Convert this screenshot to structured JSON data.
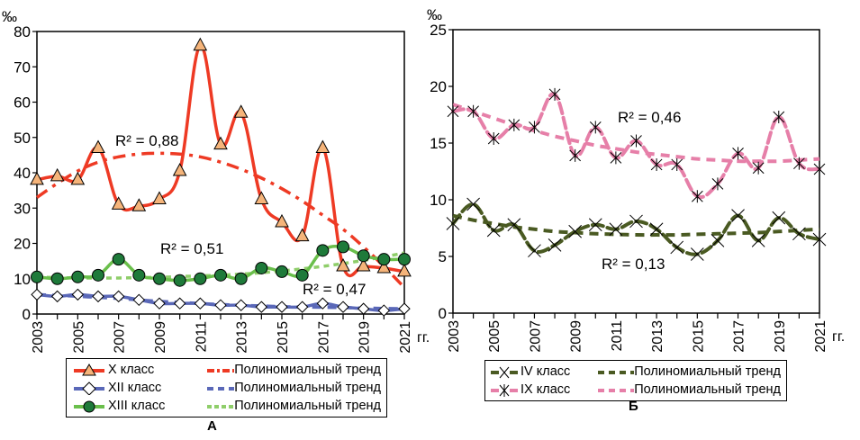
{
  "chart_data": [
    {
      "id": "A",
      "type": "line",
      "panel_label": "А",
      "unit_label": "‰",
      "x_suffix": "гг.",
      "x": [
        2003,
        2004,
        2005,
        2006,
        2007,
        2008,
        2009,
        2010,
        2011,
        2012,
        2013,
        2014,
        2015,
        2016,
        2017,
        2018,
        2019,
        2020,
        2021
      ],
      "xticks_labeled": [
        2003,
        2005,
        2007,
        2009,
        2011,
        2013,
        2015,
        2017,
        2019,
        2021
      ],
      "ylim": [
        0,
        80
      ],
      "yticks": [
        0,
        10,
        20,
        30,
        40,
        50,
        60,
        70,
        80
      ],
      "grid": false,
      "series": [
        {
          "name": "X класс",
          "color": "#ee3a24",
          "marker": "triangle",
          "marker_fill": "#f5b47a",
          "values": [
            38,
            39,
            38,
            47,
            31,
            30.5,
            32.5,
            40.5,
            76,
            48,
            57,
            32.5,
            26,
            22,
            47,
            13.5,
            13.5,
            13,
            12
          ]
        },
        {
          "name": "XII класс",
          "color": "#5a68b8",
          "marker": "diamond",
          "marker_fill": "#ffffff",
          "values": [
            5.5,
            5,
            5.5,
            5,
            5,
            4,
            3,
            3,
            3,
            2.5,
            2.5,
            2,
            2,
            2,
            3,
            2,
            1.5,
            1,
            1.5
          ]
        },
        {
          "name": "XIII класс",
          "color": "#6abf4b",
          "marker": "circle",
          "marker_fill": "#1e7a3a",
          "values": [
            10.5,
            10,
            10.5,
            11,
            15.5,
            11,
            10,
            9.5,
            10,
            11,
            10,
            13,
            12,
            11,
            18,
            19,
            16.5,
            15.5,
            15.5
          ]
        }
      ],
      "trends": [
        {
          "name": "Полиномиальный тренд",
          "for": "X класс",
          "color": "#ee3a24",
          "style": "dash-dot",
          "r2_label": "R² = 0,88",
          "values": [
            33,
            37,
            40.5,
            43,
            44.5,
            45.3,
            45.5,
            45.3,
            44.5,
            43,
            41,
            38.5,
            35.5,
            32,
            28,
            24,
            19,
            13.5,
            7.5
          ]
        },
        {
          "name": "Полиномиальный тренд",
          "for": "XII класс",
          "color": "#5a68b8",
          "style": "dash",
          "r2_label": "R² = 0,47",
          "values": [
            5.5,
            5.3,
            5,
            4.7,
            4.4,
            4,
            3.6,
            3.3,
            3,
            2.7,
            2.5,
            2.3,
            2.1,
            2,
            1.9,
            1.8,
            1.7,
            1.6,
            1.5
          ]
        },
        {
          "name": "Полиномиальный тренд",
          "for": "XIII класс",
          "color": "#8fce6a",
          "style": "dotted",
          "r2_label": "R² = 0,51",
          "values": [
            10.5,
            10.3,
            10.2,
            10.2,
            10.2,
            10.3,
            10.4,
            10.6,
            10.8,
            11,
            11.3,
            11.7,
            12.2,
            12.8,
            13.5,
            14.3,
            15.2,
            16.2,
            17.3
          ]
        }
      ]
    },
    {
      "id": "B",
      "type": "line",
      "panel_label": "Б",
      "unit_label": "‰",
      "x_suffix": "гг.",
      "x": [
        2003,
        2004,
        2005,
        2006,
        2007,
        2008,
        2009,
        2010,
        2011,
        2012,
        2013,
        2014,
        2015,
        2016,
        2017,
        2018,
        2019,
        2020,
        2021
      ],
      "xticks_labeled": [
        2003,
        2005,
        2007,
        2009,
        2011,
        2013,
        2015,
        2017,
        2019,
        2021
      ],
      "ylim": [
        0,
        25
      ],
      "yticks": [
        0,
        5,
        10,
        15,
        20,
        25
      ],
      "grid": false,
      "series": [
        {
          "name": "IV класс",
          "color": "#4a5a22",
          "marker": "x",
          "values": [
            7.9,
            9.6,
            7.3,
            7.8,
            5.5,
            6.0,
            7.2,
            7.8,
            7.4,
            8.1,
            7.4,
            5.8,
            5.2,
            6.4,
            8.6,
            6.4,
            8.4,
            7.0,
            6.5
          ]
        },
        {
          "name": "IX класс",
          "color": "#e67fa8",
          "marker": "asterisk",
          "values": [
            17.8,
            17.8,
            15.4,
            16.6,
            16.4,
            19.3,
            13.9,
            16.4,
            13.7,
            15.2,
            13.1,
            13.1,
            10.3,
            11.4,
            14.1,
            12.8,
            17.3,
            13.2,
            12.7
          ]
        }
      ],
      "trends": [
        {
          "name": "Полиномиальный тренд",
          "for": "IV класс",
          "color": "#4a5a22",
          "style": "dash",
          "r2_label": "R² = 0,13",
          "values": [
            8.6,
            8.2,
            7.9,
            7.6,
            7.4,
            7.2,
            7.1,
            7.0,
            6.95,
            6.9,
            6.9,
            6.9,
            6.95,
            7.0,
            7.05,
            7.1,
            7.2,
            7.3,
            7.4
          ]
        },
        {
          "name": "Полиномиальный тренд",
          "for": "IX класс",
          "color": "#e67fa8",
          "style": "dash",
          "r2_label": "R² = 0,46",
          "values": [
            18.4,
            17.8,
            17.2,
            16.6,
            16.1,
            15.6,
            15.2,
            14.8,
            14.5,
            14.2,
            14.0,
            13.8,
            13.6,
            13.5,
            13.4,
            13.4,
            13.4,
            13.5,
            13.6
          ]
        }
      ]
    }
  ]
}
